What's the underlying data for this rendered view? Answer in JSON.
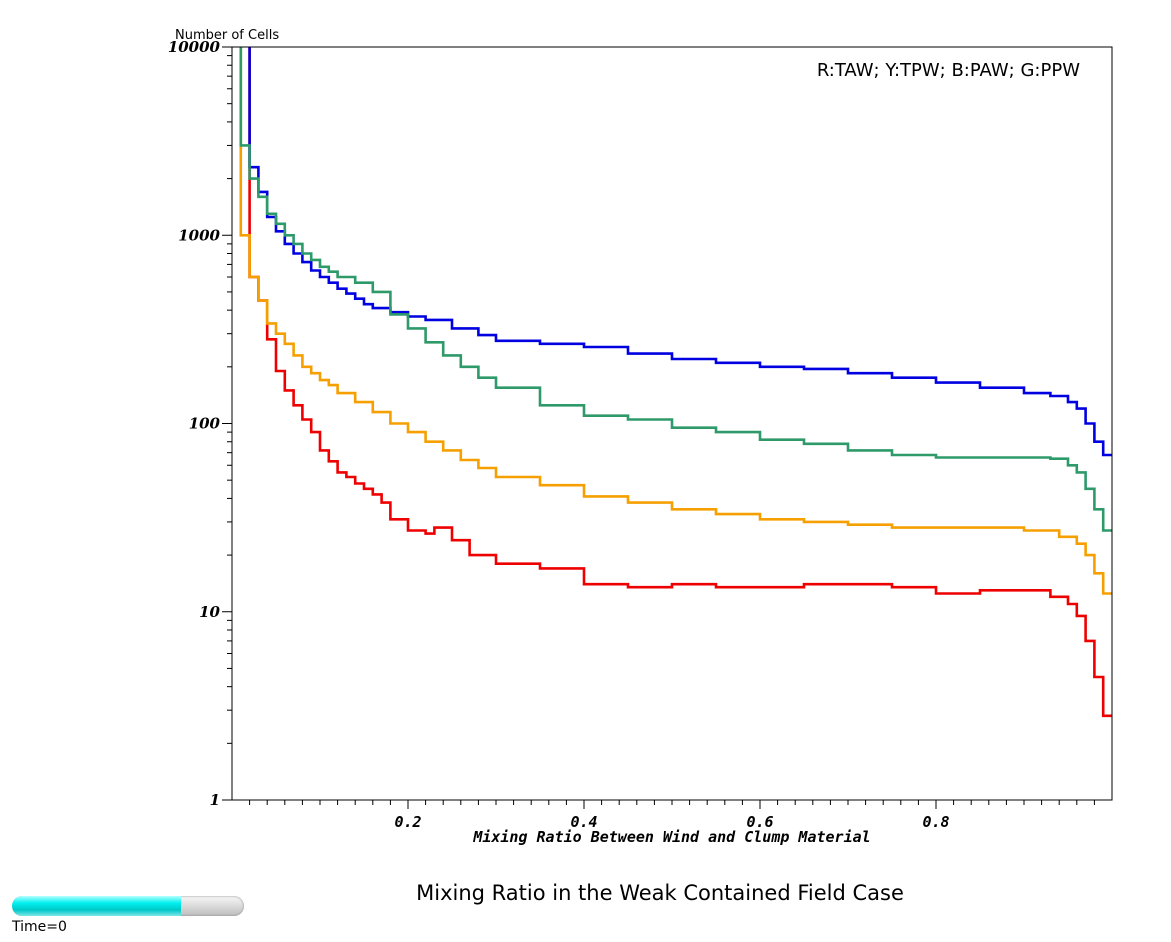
{
  "chart_data": {
    "type": "line",
    "step": true,
    "ylabel": "Number of Cells",
    "xlabel": "Mixing Ratio Between Wind and Clump Material",
    "legend_text": "R:TAW; Y:TPW; B:PAW; G:PPW",
    "legend_position": "top-right",
    "y_scale": "log",
    "ylim": [
      1,
      10000
    ],
    "xlim": [
      0.0,
      1.0
    ],
    "y_ticks": [
      "1",
      "10",
      "100",
      "1000",
      "10000"
    ],
    "x_ticks": [
      "0.2",
      "0.4",
      "0.6",
      "0.8"
    ],
    "grid": false,
    "series": [
      {
        "color": "#ee0000",
        "x": [
          0.02,
          0.03,
          0.04,
          0.05,
          0.06,
          0.07,
          0.08,
          0.09,
          0.1,
          0.11,
          0.12,
          0.13,
          0.14,
          0.15,
          0.16,
          0.17,
          0.18,
          0.2,
          0.22,
          0.23,
          0.25,
          0.27,
          0.3,
          0.35,
          0.4,
          0.45,
          0.5,
          0.55,
          0.6,
          0.65,
          0.7,
          0.75,
          0.8,
          0.85,
          0.9,
          0.93,
          0.95,
          0.96,
          0.97,
          0.98,
          0.99,
          1.0
        ],
        "y": [
          600,
          450,
          280,
          190,
          150,
          125,
          105,
          90,
          72,
          63,
          55,
          52,
          48,
          45,
          42,
          38,
          31,
          27,
          26,
          28,
          24,
          20,
          18,
          17,
          14,
          13.5,
          14,
          13.5,
          13.5,
          14,
          14,
          13.5,
          12.5,
          13,
          13,
          12,
          11,
          9.5,
          7,
          4.5,
          2.8,
          2.8
        ]
      },
      {
        "color": "#f5a000",
        "x": [
          0.01,
          0.02,
          0.03,
          0.04,
          0.05,
          0.06,
          0.07,
          0.08,
          0.09,
          0.1,
          0.11,
          0.12,
          0.14,
          0.16,
          0.18,
          0.2,
          0.22,
          0.24,
          0.26,
          0.28,
          0.3,
          0.35,
          0.4,
          0.45,
          0.5,
          0.55,
          0.6,
          0.65,
          0.7,
          0.75,
          0.8,
          0.85,
          0.9,
          0.94,
          0.96,
          0.97,
          0.98,
          0.99,
          1.0
        ],
        "y": [
          1000,
          600,
          450,
          340,
          300,
          265,
          230,
          200,
          185,
          170,
          160,
          145,
          130,
          115,
          100,
          90,
          80,
          72,
          64,
          58,
          52,
          47,
          41,
          38,
          35,
          33,
          31,
          30,
          29,
          28,
          28,
          28,
          27,
          25,
          23,
          20,
          16,
          12.5,
          12.5
        ]
      },
      {
        "color": "#0000e0",
        "x": [
          0.02,
          0.03,
          0.04,
          0.05,
          0.06,
          0.07,
          0.08,
          0.09,
          0.1,
          0.11,
          0.12,
          0.13,
          0.14,
          0.15,
          0.16,
          0.18,
          0.2,
          0.22,
          0.25,
          0.28,
          0.3,
          0.35,
          0.4,
          0.45,
          0.5,
          0.55,
          0.6,
          0.65,
          0.7,
          0.75,
          0.8,
          0.85,
          0.9,
          0.93,
          0.95,
          0.96,
          0.97,
          0.98,
          0.99,
          1.0
        ],
        "y": [
          2300,
          1700,
          1250,
          1050,
          900,
          800,
          720,
          650,
          600,
          560,
          520,
          490,
          460,
          430,
          410,
          390,
          370,
          355,
          320,
          295,
          275,
          265,
          255,
          235,
          220,
          210,
          200,
          195,
          185,
          175,
          165,
          155,
          145,
          140,
          130,
          120,
          100,
          80,
          68,
          68
        ]
      },
      {
        "color": "#2e9a6a",
        "x": [
          0.01,
          0.02,
          0.03,
          0.04,
          0.05,
          0.06,
          0.07,
          0.08,
          0.09,
          0.1,
          0.11,
          0.12,
          0.14,
          0.16,
          0.18,
          0.2,
          0.22,
          0.24,
          0.26,
          0.28,
          0.3,
          0.35,
          0.4,
          0.45,
          0.5,
          0.55,
          0.6,
          0.65,
          0.7,
          0.75,
          0.8,
          0.85,
          0.9,
          0.93,
          0.95,
          0.96,
          0.97,
          0.98,
          0.99,
          1.0
        ],
        "y": [
          3000,
          2000,
          1600,
          1300,
          1150,
          1000,
          900,
          800,
          740,
          680,
          640,
          600,
          560,
          500,
          380,
          320,
          270,
          230,
          200,
          175,
          155,
          125,
          110,
          105,
          95,
          90,
          82,
          78,
          72,
          68,
          66,
          66,
          66,
          65,
          60,
          55,
          45,
          35,
          27,
          27
        ]
      }
    ]
  },
  "caption": "Mixing Ratio in the Weak Contained Field Case",
  "time_slider": {
    "label": "Time=0",
    "fill_fraction": 0.73,
    "fill_color": "#00e6e6"
  }
}
